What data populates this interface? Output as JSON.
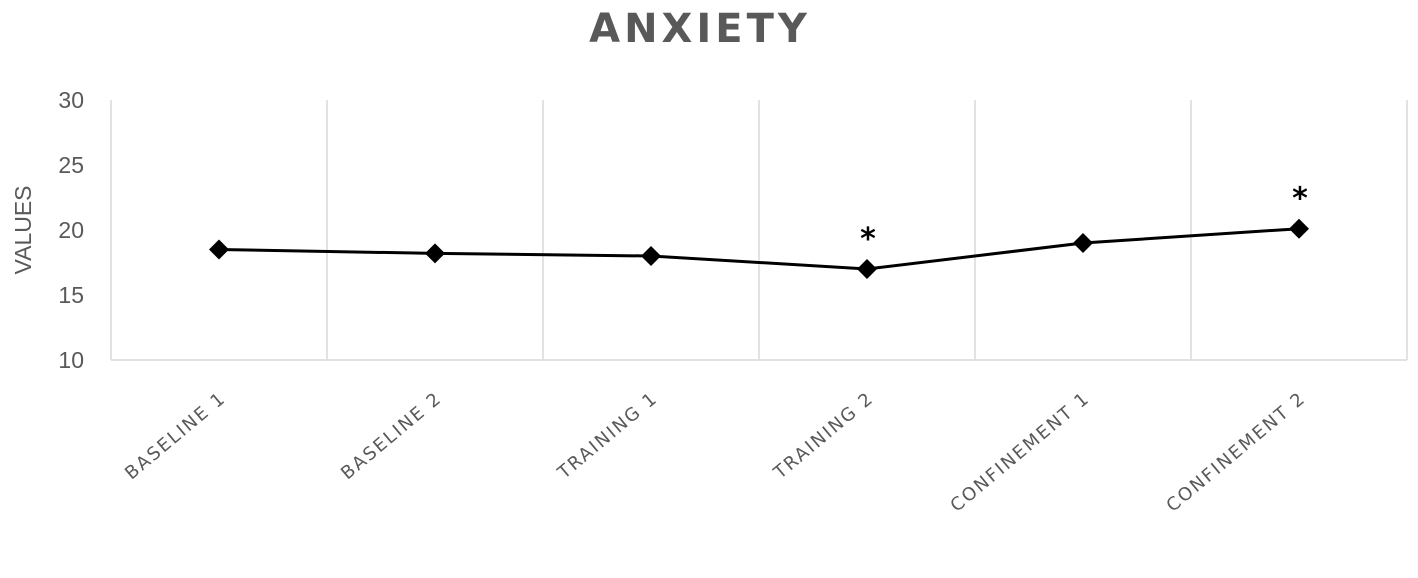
{
  "chart_data": {
    "type": "line",
    "title": "ANXIETY",
    "ylabel": "VALUES",
    "xlabel": "",
    "ylim": [
      10,
      30
    ],
    "yticks": [
      10,
      15,
      20,
      25,
      30
    ],
    "categories": [
      "BASELINE 1",
      "BASELINE 2",
      "TRAINING 1",
      "TRAINING 2",
      "CONFINEMENT 1",
      "CONFINEMENT 2"
    ],
    "values": [
      18.5,
      18.2,
      18.0,
      17.0,
      19.0,
      20.1
    ],
    "annotations": [
      "",
      "",
      "",
      "*",
      "",
      "*"
    ],
    "grid": "vertical",
    "line_color": "#000000",
    "marker": "diamond"
  }
}
